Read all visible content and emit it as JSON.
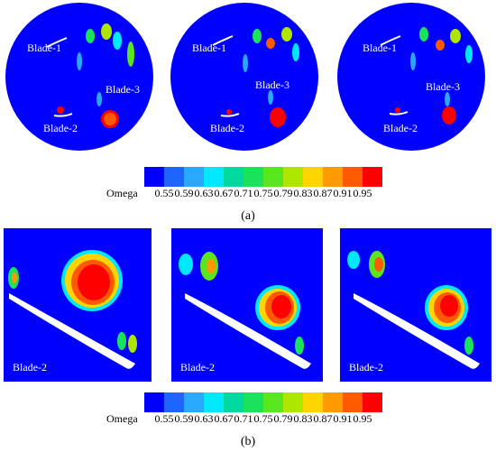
{
  "figure": {
    "caption_a": "(a)",
    "caption_b": "(b)"
  },
  "colorbar": {
    "title": "Omega",
    "ticks": [
      "0.55",
      "0.59",
      "0.63",
      "0.67",
      "0.71",
      "0.75",
      "0.79",
      "0.83",
      "0.87",
      "0.91",
      "0.95"
    ],
    "colors": [
      "#0000ff",
      "#1e64ff",
      "#2aa8ff",
      "#00e8ff",
      "#00d8a0",
      "#19e35a",
      "#5ae61e",
      "#aee600",
      "#ffd400",
      "#ff9a00",
      "#ff5a00",
      "#ff0000"
    ]
  },
  "row_a": {
    "panels": [
      {
        "labels": [
          "Blade-1",
          "Blade-3",
          "Blade-2"
        ]
      },
      {
        "labels": [
          "Blade-1",
          "Blade-3",
          "Blade-2"
        ]
      },
      {
        "labels": [
          "Blade-1",
          "Blade-3",
          "Blade-2"
        ]
      }
    ]
  },
  "row_b": {
    "panels": [
      {
        "label": "Blade-2"
      },
      {
        "label": "Blade-2"
      },
      {
        "label": "Blade-2"
      }
    ]
  },
  "field_colors": {
    "background": "#0000ff",
    "blade": "#ffffff"
  }
}
